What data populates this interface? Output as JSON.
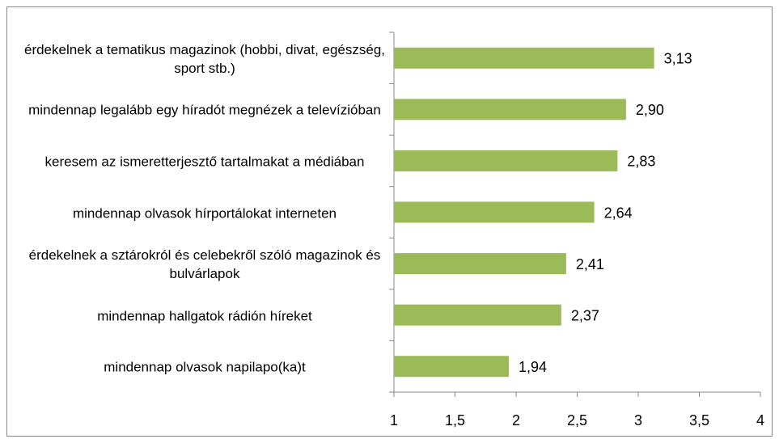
{
  "chart_data": {
    "type": "bar",
    "orientation": "horizontal",
    "categories": [
      "érdekelnek a tematikus magazinok (hobbi, divat, egészség, sport stb.)",
      "mindennap legalább egy híradót megnézek a televízióban",
      "keresem az ismeretterjesztő tartalmakat a médiában",
      "mindennap olvasok hírportálokat interneten",
      "érdekelnek a sztárokról és celebekről szóló magazinok és bulvárlapok",
      "mindennap hallgatok rádión híreket",
      "mindennap olvasok napilapo(ka)t"
    ],
    "values": [
      3.13,
      2.9,
      2.83,
      2.64,
      2.41,
      2.37,
      1.94
    ],
    "value_labels": [
      "3,13",
      "2,90",
      "2,83",
      "2,64",
      "2,41",
      "2,37",
      "1,94"
    ],
    "color": "#9bbb59",
    "xlim": [
      1,
      4
    ],
    "xticks": [
      1,
      {
        "value": 1.5,
        "label": "1,5"
      },
      2,
      {
        "value": 2.5,
        "label": "2,5"
      },
      3,
      {
        "value": 3.5,
        "label": "3,5"
      },
      4
    ],
    "grid": false
  }
}
